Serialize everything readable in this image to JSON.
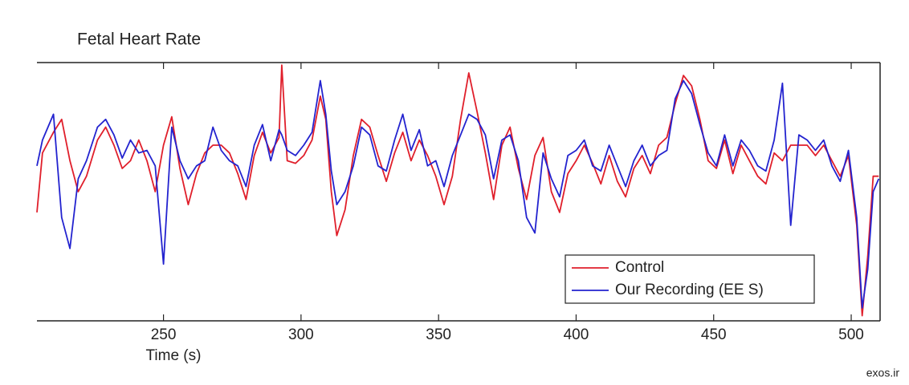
{
  "chart_data": {
    "type": "line",
    "title": "Fetal Heart Rate",
    "x_label": "Time (s)",
    "x": [
      204,
      206,
      210,
      213,
      216,
      219,
      222,
      226,
      229,
      232,
      235,
      238,
      241,
      244,
      247,
      250,
      253,
      256,
      259,
      262,
      265,
      268,
      271,
      274,
      277,
      280,
      283,
      286,
      289,
      292,
      293,
      295,
      298,
      301,
      304,
      307,
      309,
      311,
      313,
      316,
      319,
      322,
      325,
      328,
      331,
      334,
      337,
      340,
      343,
      346,
      349,
      352,
      355,
      358,
      361,
      364,
      367,
      370,
      373,
      376,
      379,
      382,
      385,
      388,
      391,
      394,
      397,
      400,
      403,
      406,
      409,
      412,
      415,
      418,
      421,
      424,
      427,
      430,
      433,
      436,
      439,
      442,
      445,
      448,
      451,
      454,
      457,
      460,
      463,
      466,
      469,
      472,
      475,
      478,
      481,
      484,
      487,
      490,
      493,
      496,
      499,
      502,
      504,
      506,
      508,
      510
    ],
    "series": [
      {
        "name": "Control",
        "color": "#e01f2b",
        "values": [
          42,
          65,
          73,
          78,
          62,
          50,
          56,
          70,
          75,
          68,
          59,
          62,
          70,
          62,
          50,
          68,
          79,
          59,
          45,
          57,
          65,
          68,
          68,
          65,
          57,
          47,
          64,
          73,
          65,
          71,
          99,
          62,
          61,
          64,
          70,
          87,
          78,
          50,
          33,
          43,
          64,
          78,
          75,
          64,
          54,
          65,
          73,
          62,
          70,
          64,
          56,
          45,
          56,
          78,
          96,
          81,
          65,
          47,
          68,
          75,
          59,
          47,
          64,
          71,
          50,
          42,
          57,
          62,
          68,
          61,
          53,
          64,
          54,
          48,
          59,
          64,
          57,
          68,
          71,
          84,
          95,
          91,
          78,
          62,
          59,
          70,
          57,
          68,
          62,
          56,
          53,
          65,
          62,
          68,
          68,
          68,
          64,
          68,
          62,
          56,
          64,
          37,
          2,
          25,
          56,
          56
        ]
      },
      {
        "name": "Our Recording (EE S)",
        "color": "#2323cf",
        "values": [
          60,
          70,
          80,
          40,
          28,
          55,
          62,
          75,
          78,
          72,
          63,
          70,
          65,
          66,
          60,
          22,
          75,
          62,
          55,
          60,
          62,
          75,
          66,
          62,
          60,
          52,
          68,
          76,
          62,
          74,
          72,
          66,
          64,
          68,
          73,
          93,
          80,
          58,
          45,
          50,
          60,
          75,
          72,
          60,
          58,
          70,
          80,
          66,
          74,
          60,
          62,
          52,
          64,
          72,
          80,
          78,
          72,
          55,
          70,
          72,
          62,
          40,
          34,
          65,
          55,
          48,
          64,
          66,
          70,
          60,
          58,
          68,
          60,
          52,
          62,
          68,
          60,
          64,
          66,
          86,
          93,
          88,
          76,
          65,
          60,
          72,
          60,
          70,
          66,
          60,
          58,
          70,
          92,
          37,
          72,
          70,
          66,
          70,
          60,
          54,
          66,
          40,
          5,
          20,
          50,
          55
        ]
      }
    ],
    "xlim": [
      204,
      510.5
    ],
    "xticks": [
      250,
      300,
      350,
      400,
      450,
      500
    ],
    "ylim": [
      0,
      100
    ],
    "legend": "lower right"
  },
  "watermark": "exos.ir"
}
